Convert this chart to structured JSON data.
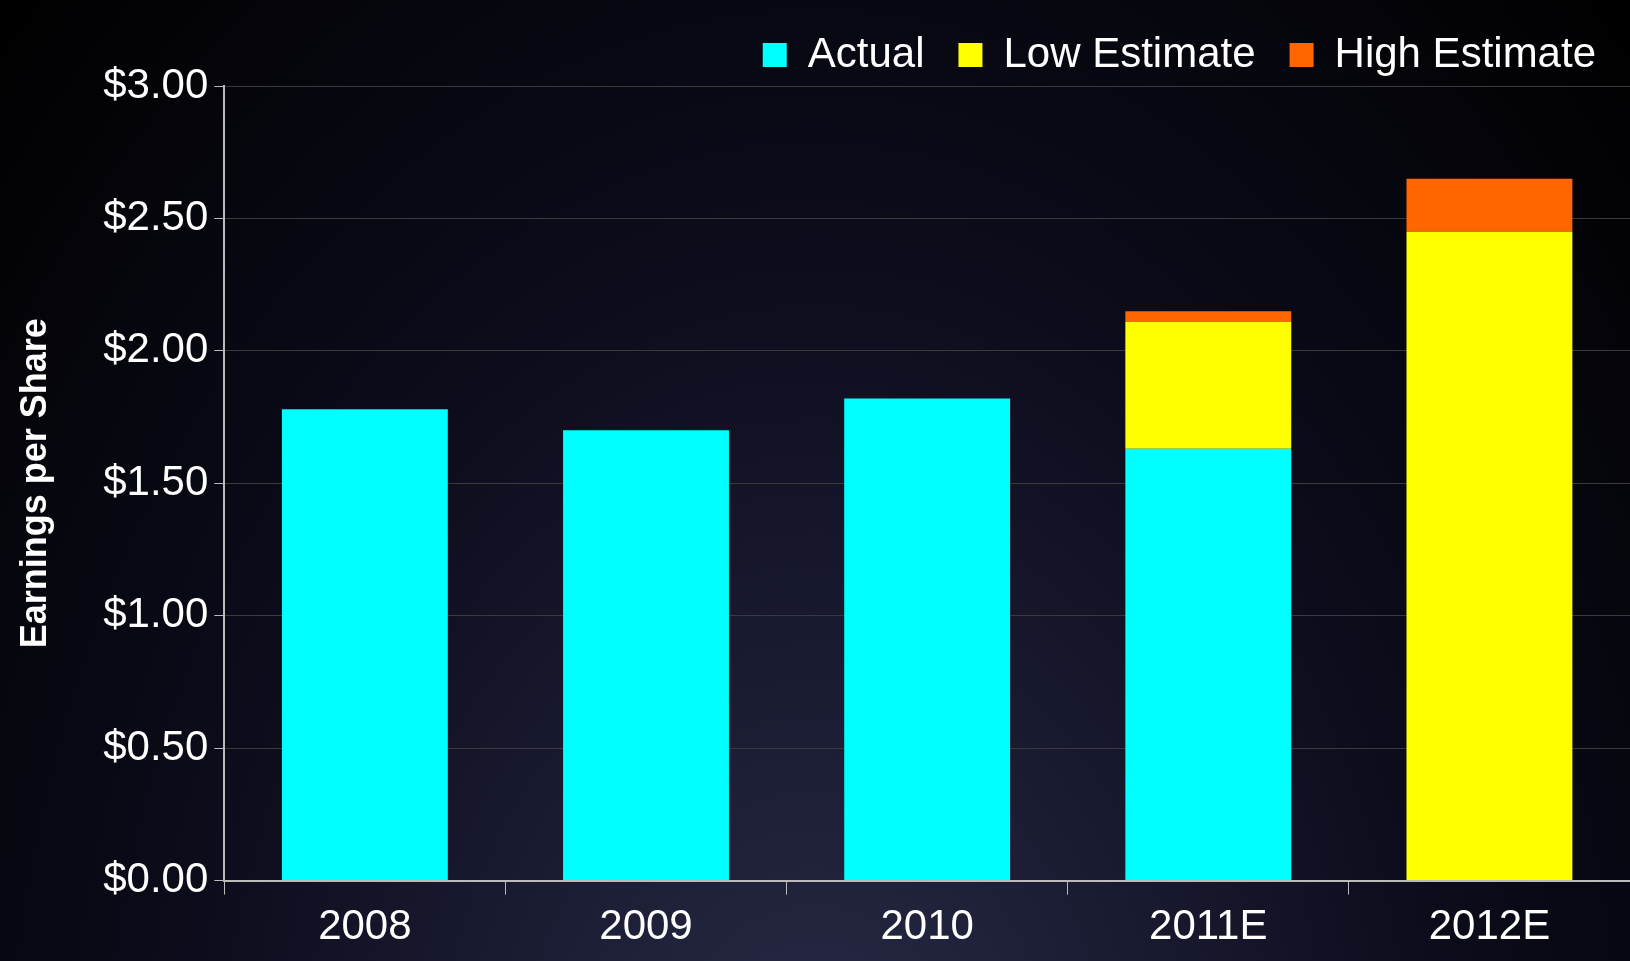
{
  "chart_data": {
    "type": "bar",
    "ylabel": "Earnings per Share",
    "categories": [
      "2008",
      "2009",
      "2010",
      "2011E",
      "2012E"
    ],
    "series": [
      {
        "name": "Actual",
        "color": "#00ffff",
        "values": [
          1.78,
          1.7,
          1.82,
          1.63,
          null
        ]
      },
      {
        "name": "Low Estimate",
        "color": "#ffff00",
        "values": [
          null,
          null,
          null,
          0.48,
          2.45
        ]
      },
      {
        "name": "High Estimate",
        "color": "#ff6600",
        "values": [
          null,
          null,
          null,
          0.04,
          0.2
        ]
      }
    ],
    "stacked": true,
    "ylim": [
      0,
      3
    ],
    "yticks": [
      {
        "value": 0,
        "label": "$0.00"
      },
      {
        "value": 0.5,
        "label": "$0.50"
      },
      {
        "value": 1,
        "label": "$1.00"
      },
      {
        "value": 1.5,
        "label": "$1.50"
      },
      {
        "value": 2,
        "label": "$2.00"
      },
      {
        "value": 2.5,
        "label": "$2.50"
      },
      {
        "value": 3,
        "label": "$3.00"
      }
    ],
    "grid": "y",
    "legend": "top right"
  }
}
